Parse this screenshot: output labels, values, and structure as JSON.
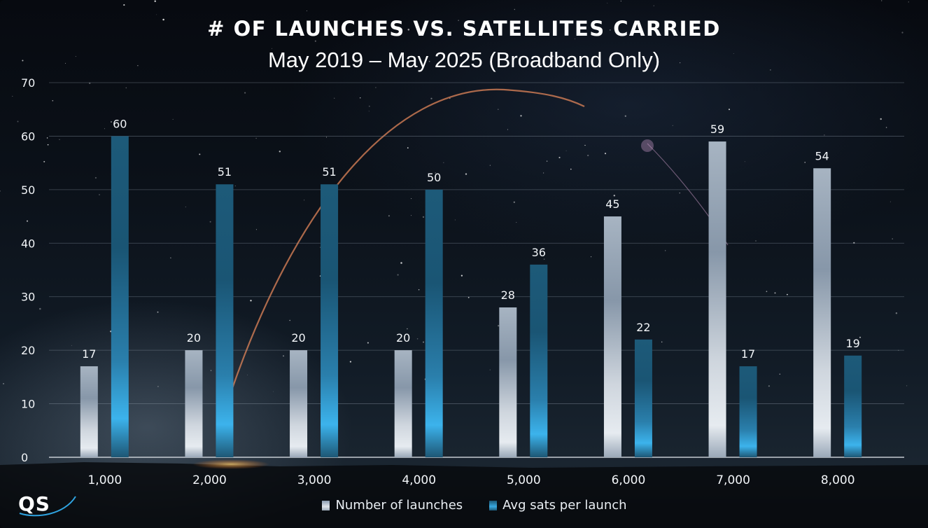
{
  "chart_data": {
    "type": "bar",
    "title": "# OF LAUNCHES VS. SATELLITES CARRIED",
    "subtitle": "May 2019 – May 2025 (Broadband Only)",
    "categories": [
      "1,000",
      "2,000",
      "3,000",
      "4,000",
      "5,000",
      "6,000",
      "7,000",
      "8,000"
    ],
    "series": [
      {
        "name": "Number of launches",
        "values": [
          17,
          20,
          20,
          20,
          28,
          45,
          59,
          54
        ],
        "color": "#c9d1da"
      },
      {
        "name": "Avg sats per launch",
        "values": [
          60,
          51,
          51,
          50,
          36,
          22,
          17,
          19
        ],
        "color": "#2f9fd6"
      }
    ],
    "yticks": [
      "0",
      "10",
      "20",
      "30",
      "40",
      "50",
      "60",
      "70"
    ],
    "ylim": [
      0,
      70
    ],
    "xlabel": "",
    "ylabel": "",
    "grid": true,
    "legend_position": "bottom"
  },
  "logo": {
    "text": "QS"
  }
}
